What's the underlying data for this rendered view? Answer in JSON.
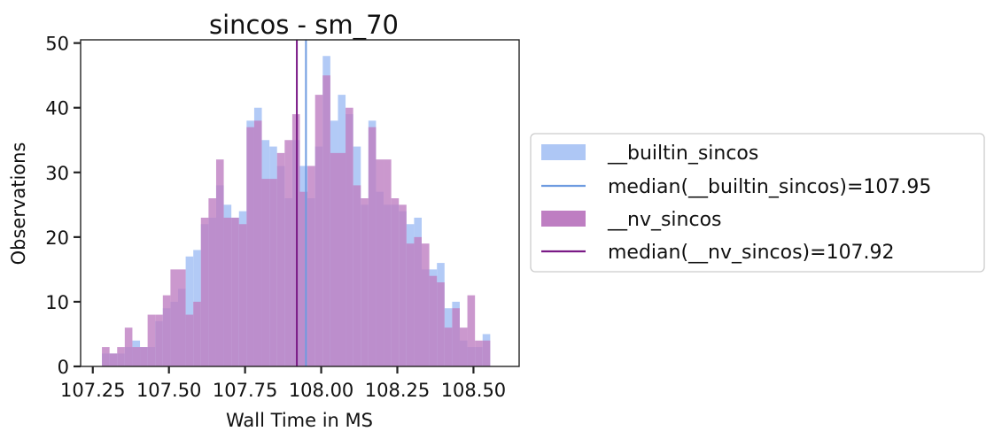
{
  "chart_data": {
    "type": "histogram",
    "title": "sincos - sm_70",
    "xlabel": "Wall Time in MS",
    "ylabel": "Observations",
    "xlim": [
      107.21,
      108.65
    ],
    "ylim": [
      0,
      50.5
    ],
    "x_ticks": [
      107.25,
      107.5,
      107.75,
      108.0,
      108.25,
      108.5
    ],
    "x_tick_labels": [
      "107.25",
      "107.50",
      "107.75",
      "108.00",
      "108.25",
      "108.50"
    ],
    "y_ticks": [
      0,
      10,
      20,
      30,
      40,
      50
    ],
    "y_tick_labels": [
      "0",
      "10",
      "20",
      "30",
      "40",
      "50"
    ],
    "grid": false,
    "legend_position": "right",
    "legend": [
      {
        "label": "__builtin_sincos",
        "kind": "patch",
        "color": "#aec7f5"
      },
      {
        "label": "median(__builtin_sincos)=107.95",
        "kind": "line",
        "color": "#6e9be0"
      },
      {
        "label": "__nv_sincos",
        "kind": "patch",
        "color": "#be7ec2"
      },
      {
        "label": "median(__nv_sincos)=107.92",
        "kind": "line",
        "color": "#7a1a86"
      }
    ],
    "series": [
      {
        "name": "__builtin_sincos",
        "color": "#aec7f5",
        "opacity": 0.95,
        "bin_start": 107.28,
        "bin_width": 0.025,
        "counts": [
          2,
          2,
          2,
          3,
          4,
          3,
          3,
          7,
          9,
          10,
          12,
          17,
          18,
          22,
          23,
          28,
          25,
          23,
          24,
          38,
          40,
          35,
          34,
          31,
          26,
          35,
          31,
          26,
          34,
          48,
          38,
          42,
          39,
          34,
          25,
          38,
          27,
          25,
          25,
          24,
          22,
          23,
          15,
          15,
          16,
          9,
          10,
          4,
          3,
          3,
          5
        ]
      },
      {
        "name": "__nv_sincos",
        "color": "#be7ec2",
        "opacity": 0.8,
        "bin_start": 107.28,
        "bin_width": 0.025,
        "counts": [
          3,
          2,
          3,
          6,
          3,
          3,
          8,
          8,
          11,
          15,
          15,
          8,
          10,
          23,
          26,
          32,
          23,
          23,
          22,
          37,
          38,
          29,
          29,
          33,
          35,
          39,
          27,
          31,
          42,
          45,
          33,
          33,
          40,
          28,
          26,
          37,
          32,
          32,
          26,
          25,
          19,
          20,
          19,
          14,
          13,
          6,
          9,
          6,
          11,
          4,
          4
        ]
      }
    ],
    "medians": [
      {
        "name": "median(__builtin_sincos)",
        "value": 107.95,
        "color": "#6e9be0"
      },
      {
        "name": "median(__nv_sincos)",
        "value": 107.92,
        "color": "#7a1a86"
      }
    ]
  }
}
